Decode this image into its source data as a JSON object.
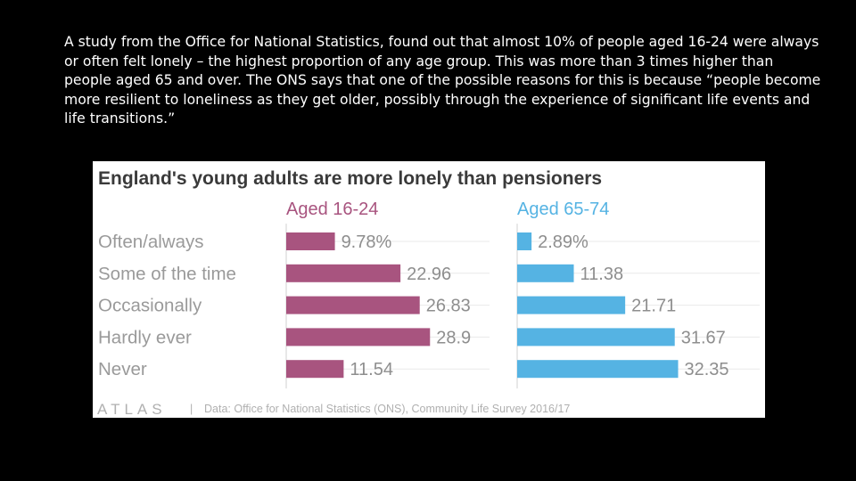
{
  "intro_text": "A study from the Office for National Statistics, found out that almost 10% of people aged 16-24 were always or often felt lonely – the highest proportion of any age group. This was more than 3 times higher than people aged 65 and over. The ONS says that one of the possible reasons for this is because  “people become more resilient to loneliness as they get older, possibly through the experience of significant life events and life transitions.”",
  "chart_data": {
    "type": "bar",
    "orientation": "horizontal",
    "title": "England's young adults are more lonely than pensioners",
    "categories": [
      "Often/always",
      "Some of the time",
      "Occasionally",
      "Hardly ever",
      "Never"
    ],
    "series": [
      {
        "name": "Aged 16-24",
        "color": "#a8547f",
        "values": [
          9.78,
          22.96,
          26.83,
          28.9,
          11.54
        ],
        "labels": [
          "9.78%",
          "22.96",
          "26.83",
          "28.9",
          "11.54"
        ]
      },
      {
        "name": "Aged 65-74",
        "color": "#55b3e3",
        "values": [
          2.89,
          11.38,
          21.71,
          31.67,
          32.35
        ],
        "labels": [
          "2.89%",
          "11.38",
          "21.71",
          "31.67",
          "32.35"
        ]
      }
    ],
    "xlim": [
      0,
      40
    ],
    "grid": true,
    "legend": "top"
  },
  "footer": {
    "logo": "ATLAS",
    "separator": "|",
    "source": "Data: Office for National Statistics (ONS), Community Life Survey 2016/17"
  }
}
